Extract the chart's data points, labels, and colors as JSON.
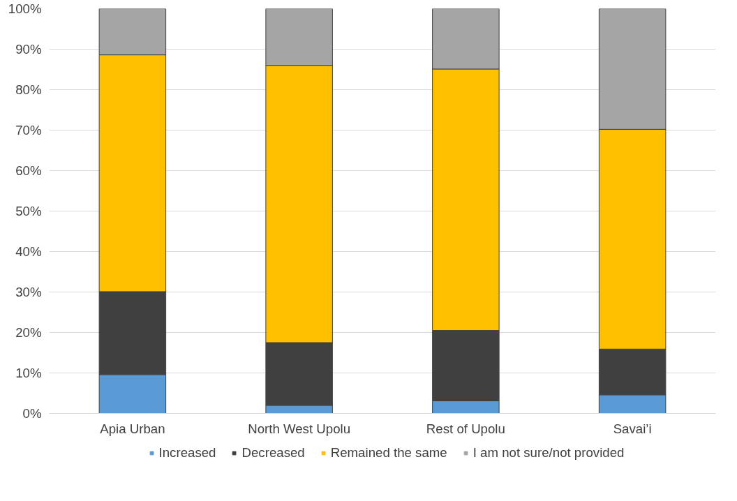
{
  "chart_data": {
    "type": "bar",
    "stacked": true,
    "categories": [
      "Apia Urban",
      "North West Upolu",
      "Rest of Upolu",
      "Savai’i"
    ],
    "series": [
      {
        "name": "Increased",
        "color": "#5b9bd5",
        "values": [
          9.6,
          2.0,
          3.1,
          4.6
        ]
      },
      {
        "name": "Decreased",
        "color": "#404040",
        "values": [
          20.5,
          15.5,
          17.4,
          11.3
        ]
      },
      {
        "name": "Remained the same",
        "color": "#ffc000",
        "values": [
          58.5,
          68.5,
          64.6,
          54.3
        ]
      },
      {
        "name": "I am not sure/not provided",
        "color": "#a5a5a5",
        "values": [
          11.4,
          14.0,
          14.9,
          29.8
        ]
      }
    ],
    "ylim": [
      0,
      100
    ],
    "yticks": [
      {
        "value": 0,
        "label": "0%"
      },
      {
        "value": 10,
        "label": "10%"
      },
      {
        "value": 20,
        "label": "20%"
      },
      {
        "value": 30,
        "label": "30%"
      },
      {
        "value": 40,
        "label": "40%"
      },
      {
        "value": 50,
        "label": "50%"
      },
      {
        "value": 60,
        "label": "60%"
      },
      {
        "value": 70,
        "label": "70%"
      },
      {
        "value": 80,
        "label": "80%"
      },
      {
        "value": 90,
        "label": "90%"
      },
      {
        "value": 100,
        "label": "100%"
      }
    ],
    "grid": "y",
    "legend": "bottom"
  }
}
